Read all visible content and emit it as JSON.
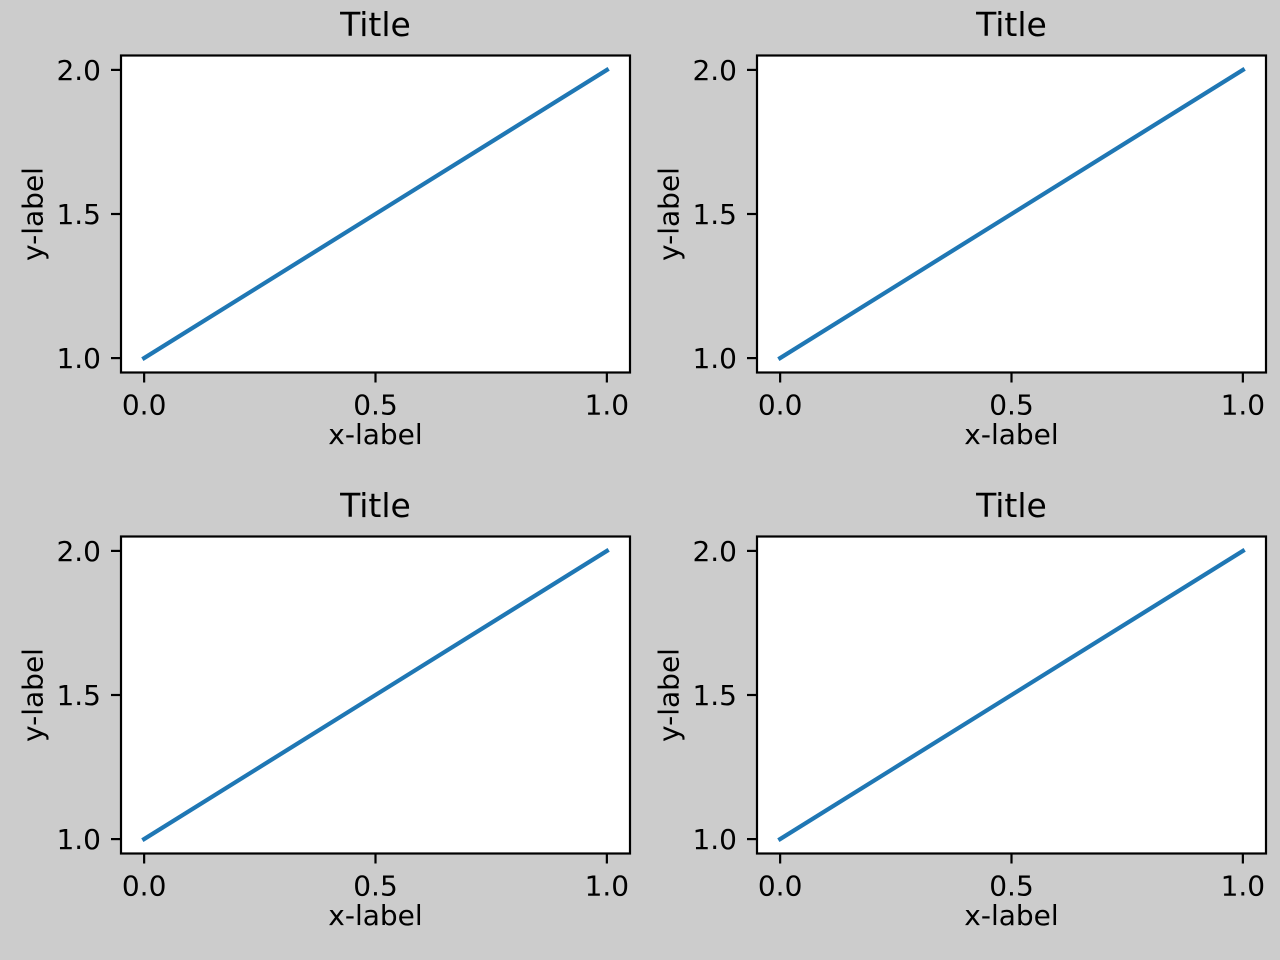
{
  "figure": {
    "background": "#cccccc",
    "plot_background": "#ffffff",
    "spine_color": "#000000",
    "text_color": "#000000",
    "line_color": "#1f77b4"
  },
  "chart_data": [
    {
      "type": "line",
      "position": "top-left",
      "title": "Title",
      "xlabel": "x-label",
      "ylabel": "y-label",
      "x": [
        0.0,
        1.0
      ],
      "y": [
        1.0,
        2.0
      ],
      "xlim": [
        -0.05,
        1.05
      ],
      "ylim": [
        0.95,
        2.05
      ],
      "xticks": [
        0.0,
        0.5,
        1.0
      ],
      "xtick_labels": [
        "0.0",
        "0.5",
        "1.0"
      ],
      "yticks": [
        1.0,
        1.5,
        2.0
      ],
      "ytick_labels": [
        "1.0",
        "1.5",
        "2.0"
      ],
      "grid": false,
      "legend": null
    },
    {
      "type": "line",
      "position": "top-right",
      "title": "Title",
      "xlabel": "x-label",
      "ylabel": "y-label",
      "x": [
        0.0,
        1.0
      ],
      "y": [
        1.0,
        2.0
      ],
      "xlim": [
        -0.05,
        1.05
      ],
      "ylim": [
        0.95,
        2.05
      ],
      "xticks": [
        0.0,
        0.5,
        1.0
      ],
      "xtick_labels": [
        "0.0",
        "0.5",
        "1.0"
      ],
      "yticks": [
        1.0,
        1.5,
        2.0
      ],
      "ytick_labels": [
        "1.0",
        "1.5",
        "2.0"
      ],
      "grid": false,
      "legend": null
    },
    {
      "type": "line",
      "position": "bottom-left",
      "title": "Title",
      "xlabel": "x-label",
      "ylabel": "y-label",
      "x": [
        0.0,
        1.0
      ],
      "y": [
        1.0,
        2.0
      ],
      "xlim": [
        -0.05,
        1.05
      ],
      "ylim": [
        0.95,
        2.05
      ],
      "xticks": [
        0.0,
        0.5,
        1.0
      ],
      "xtick_labels": [
        "0.0",
        "0.5",
        "1.0"
      ],
      "yticks": [
        1.0,
        1.5,
        2.0
      ],
      "ytick_labels": [
        "1.0",
        "1.5",
        "2.0"
      ],
      "grid": false,
      "legend": null
    },
    {
      "type": "line",
      "position": "bottom-right",
      "title": "Title",
      "xlabel": "x-label",
      "ylabel": "y-label",
      "x": [
        0.0,
        1.0
      ],
      "y": [
        1.0,
        2.0
      ],
      "xlim": [
        -0.05,
        1.05
      ],
      "ylim": [
        0.95,
        2.05
      ],
      "xticks": [
        0.0,
        0.5,
        1.0
      ],
      "xtick_labels": [
        "0.0",
        "0.5",
        "1.0"
      ],
      "yticks": [
        1.0,
        1.5,
        2.0
      ],
      "ytick_labels": [
        "1.0",
        "1.5",
        "2.0"
      ],
      "grid": false,
      "legend": null
    }
  ]
}
